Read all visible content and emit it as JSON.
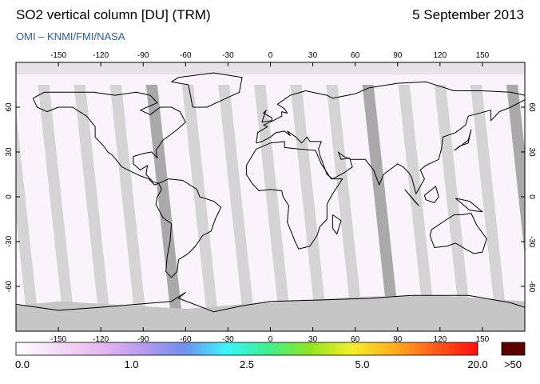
{
  "header": {
    "title": "SO2 vertical column [DU] (TRM)",
    "date": "5 September 2013",
    "credit": "OMI  –  KNMI/FMI/NASA"
  },
  "map": {
    "lon_ticks": [
      -150,
      -120,
      -90,
      -60,
      -30,
      0,
      30,
      60,
      90,
      120,
      150
    ],
    "lat_ticks": [
      60,
      30,
      0,
      -30,
      -60
    ],
    "lon_range": [
      -180,
      180
    ],
    "lat_range": [
      -90,
      90
    ],
    "projection": "equirectangular",
    "colors": {
      "background": "#f8f4fa",
      "swath_light": "#d4d4d4",
      "swath_dark": "#a9a9a9",
      "polar_fill": "#c6c6c6",
      "coast": "#000000"
    }
  },
  "colorbar": {
    "labels": [
      "0.0",
      "1.0",
      "2.5",
      "5.0",
      "20.0",
      ">50"
    ],
    "label_fraction": [
      0.0,
      0.25,
      0.5,
      0.75,
      1.0
    ],
    "stops": [
      "#ffffff",
      "#f3dcf6",
      "#e8b8f2",
      "#b99af0",
      "#6f8ff0",
      "#39f6ff",
      "#3ef08c",
      "#8fe51d",
      "#f4ee2c",
      "#ffae1d",
      "#ff5a1a",
      "#ff0d0d"
    ],
    "overflow_color": "#5c0000"
  }
}
